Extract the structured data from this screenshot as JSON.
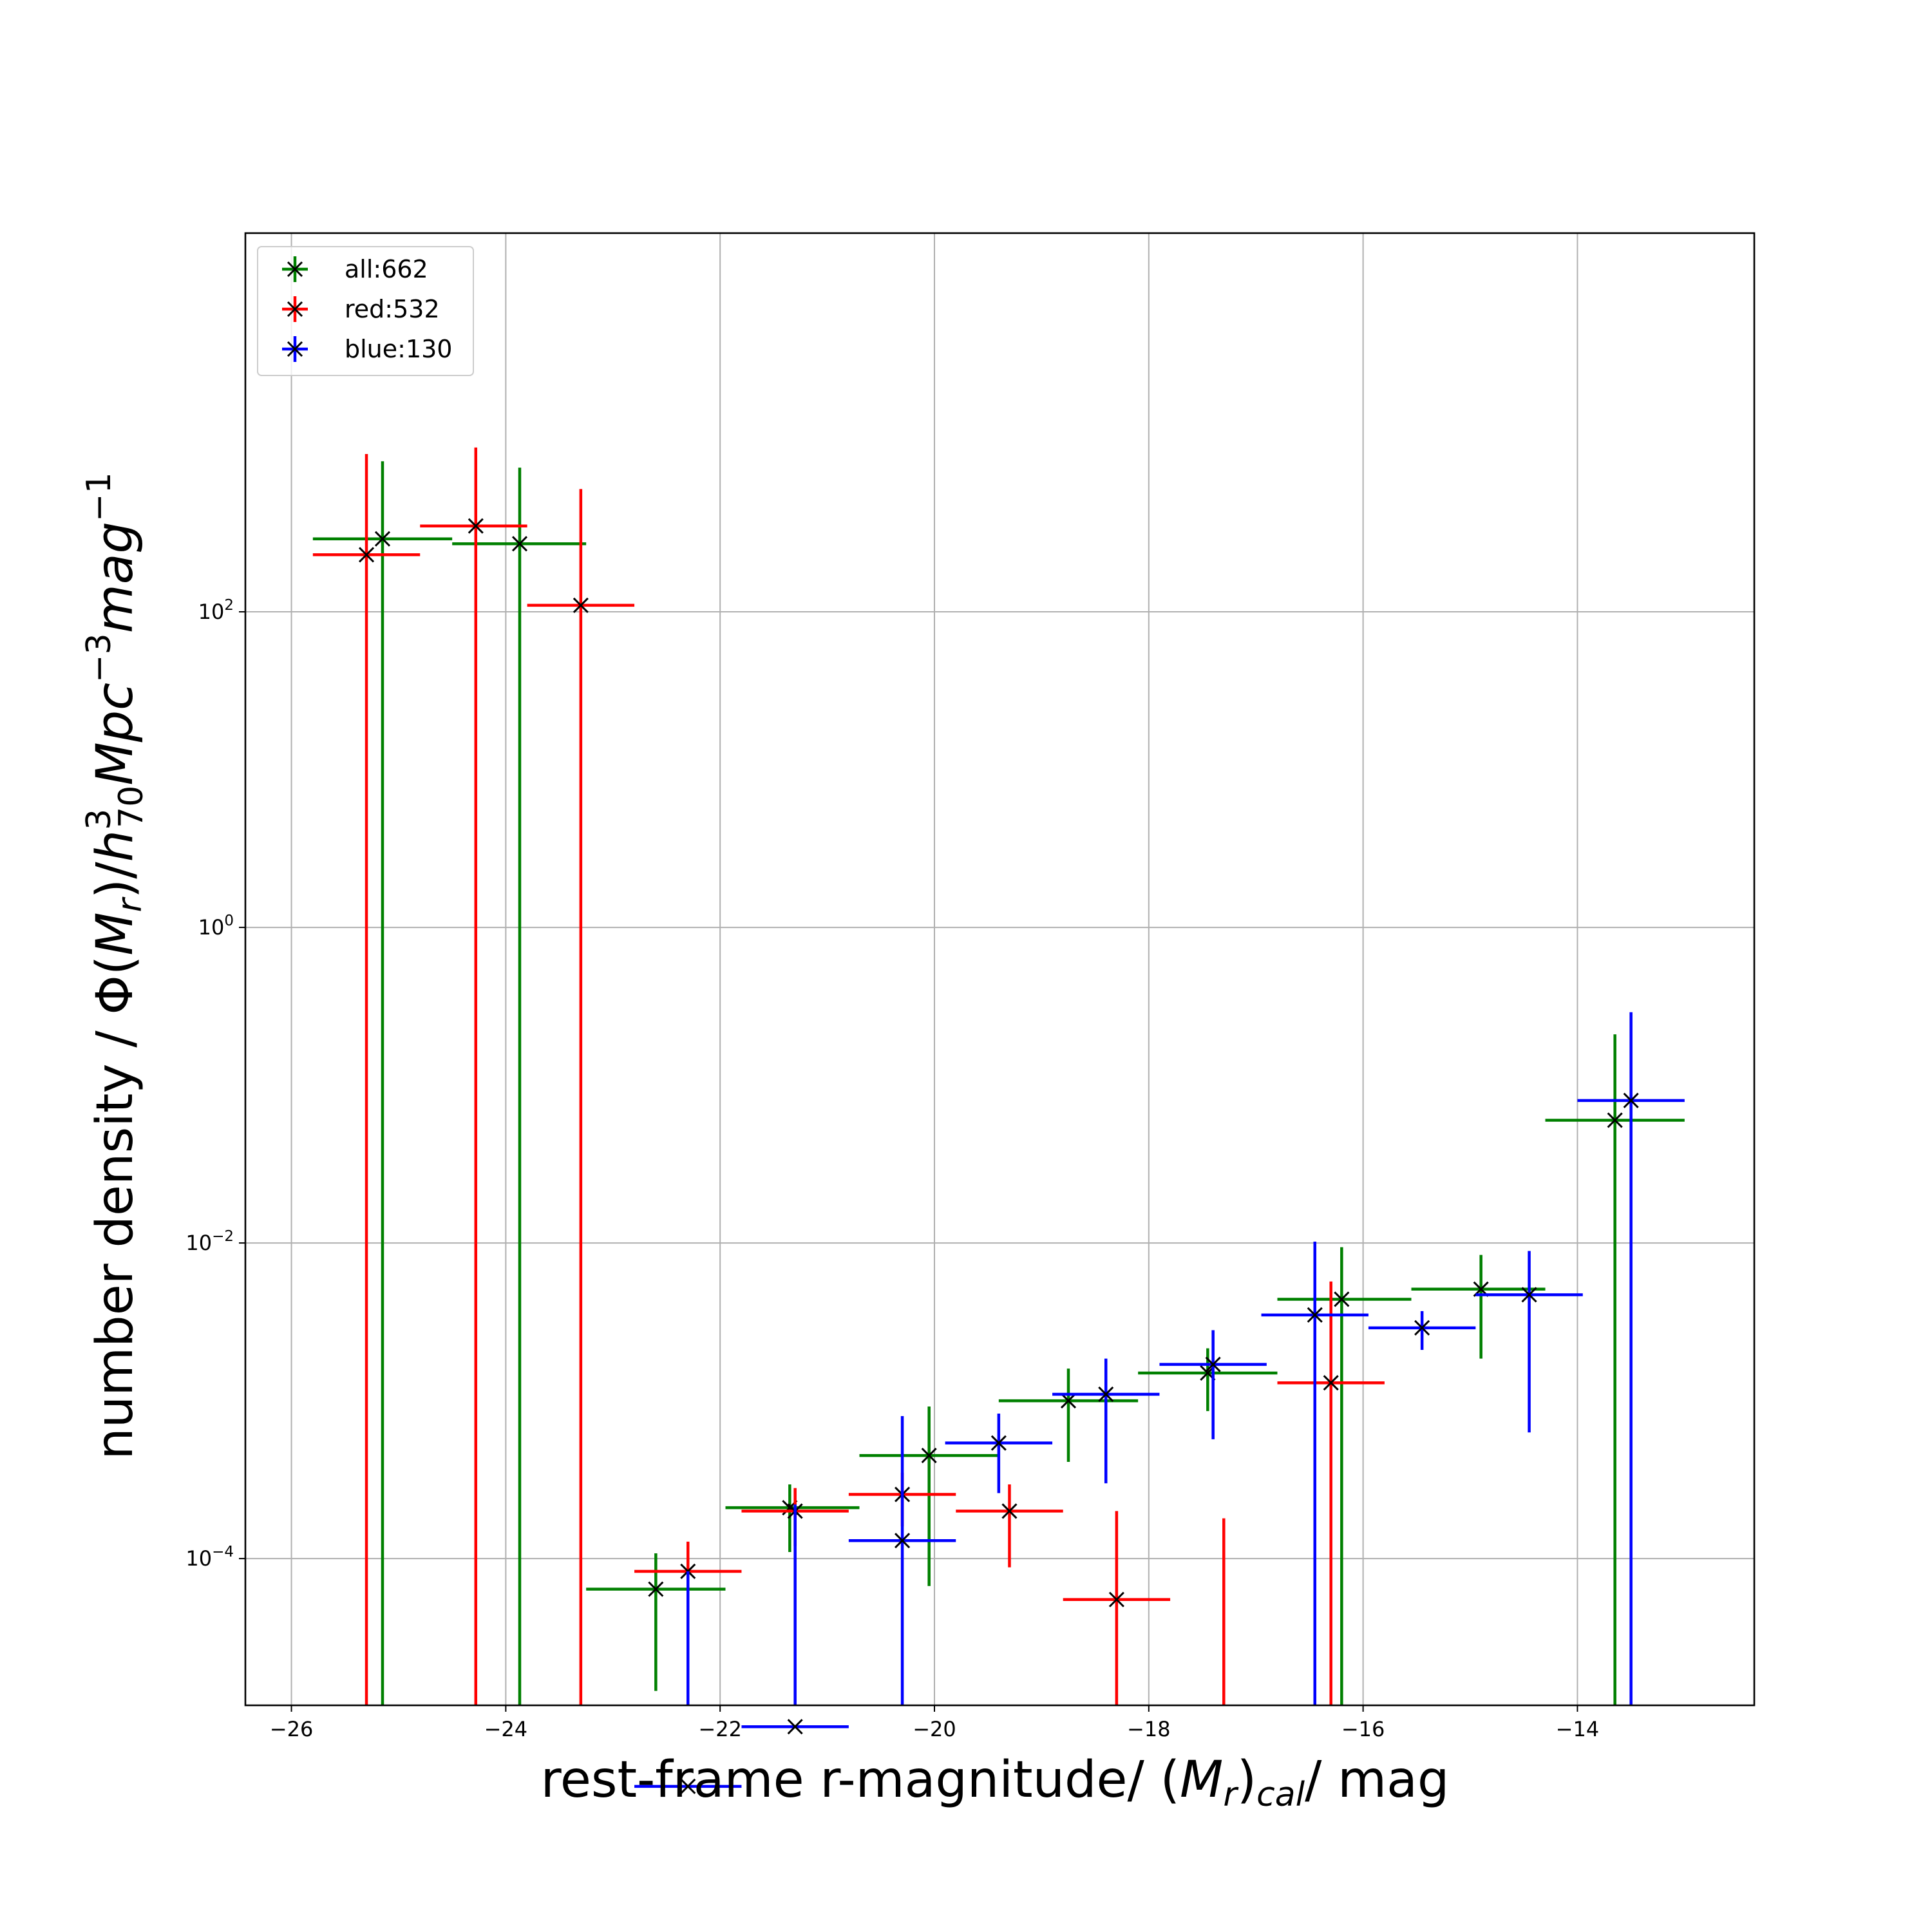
{
  "chart_data": {
    "type": "scatter",
    "xlabel": {
      "pre": "rest-frame r-magnitude/ (",
      "M": "M",
      "r": "r",
      "close": ")",
      "cal": "cal",
      "post": "/ mag"
    },
    "ylabel": {
      "pre": "number density / Φ(",
      "M": "M",
      "r": "r",
      "mid": ")/",
      "h": "h",
      "sup3": "3",
      "sub70": "70",
      "Mpc": "Mpc",
      "supm3": "−3",
      "mag": "mag",
      "supm1": "−1"
    },
    "xlim": [
      -26.43,
      -12.35
    ],
    "ylim_log10": [
      -4.93,
      4.4
    ],
    "y_scale": "log",
    "grid": true,
    "legend_position": "upper-left",
    "x_ticks": [
      {
        "value": -26,
        "label": "−26"
      },
      {
        "value": -24,
        "label": "−24"
      },
      {
        "value": -22,
        "label": "−22"
      },
      {
        "value": -20,
        "label": "−20"
      },
      {
        "value": -18,
        "label": "−18"
      },
      {
        "value": -16,
        "label": "−16"
      },
      {
        "value": -14,
        "label": "−14"
      }
    ],
    "y_ticks": [
      {
        "exp": 2,
        "base": "10",
        "sup": "2"
      },
      {
        "exp": 0,
        "base": "10",
        "sup": "0"
      },
      {
        "exp": -2,
        "base": "10",
        "sup": "−2"
      },
      {
        "exp": -4,
        "base": "10",
        "sup": "−4"
      }
    ],
    "series": [
      {
        "name": "all:662",
        "color": "#008000",
        "points": [
          {
            "x": -25.15,
            "y": 290,
            "xlo": -25.8,
            "xhi": -24.5,
            "ylo": 1e-06,
            "yhi": 900
          },
          {
            "x": -23.87,
            "y": 270,
            "xlo": -24.5,
            "xhi": -23.25,
            "ylo": 1e-06,
            "yhi": 820
          },
          {
            "x": -22.6,
            "y": 6.4e-05,
            "xlo": -23.25,
            "xhi": -21.95,
            "ylo": 1.45e-05,
            "yhi": 0.000108
          },
          {
            "x": -21.35,
            "y": 0.00021,
            "xlo": -21.95,
            "xhi": -20.7,
            "ylo": 0.00011,
            "yhi": 0.000295
          },
          {
            "x": -20.05,
            "y": 0.00045,
            "xlo": -20.7,
            "xhi": -19.4,
            "ylo": 6.7e-05,
            "yhi": 0.00092
          },
          {
            "x": -18.75,
            "y": 0.001,
            "xlo": -19.4,
            "xhi": -18.1,
            "ylo": 0.00041,
            "yhi": 0.0016
          },
          {
            "x": -17.45,
            "y": 0.0015,
            "xlo": -18.1,
            "xhi": -16.8,
            "ylo": 0.00086,
            "yhi": 0.00215
          },
          {
            "x": -16.2,
            "y": 0.0044,
            "xlo": -16.8,
            "xhi": -15.55,
            "ylo": 1e-06,
            "yhi": 0.0094
          },
          {
            "x": -14.9,
            "y": 0.0051,
            "xlo": -15.55,
            "xhi": -14.3,
            "ylo": 0.00185,
            "yhi": 0.0084
          },
          {
            "x": -13.65,
            "y": 0.06,
            "xlo": -14.3,
            "xhi": -13.0,
            "ylo": 1e-06,
            "yhi": 0.21
          }
        ]
      },
      {
        "name": "red:532",
        "color": "#ff0000",
        "points": [
          {
            "x": -25.3,
            "y": 230,
            "xlo": -25.8,
            "xhi": -24.8,
            "ylo": 1e-06,
            "yhi": 1000
          },
          {
            "x": -24.28,
            "y": 350,
            "xlo": -24.8,
            "xhi": -23.8,
            "ylo": 1e-06,
            "yhi": 1100
          },
          {
            "x": -23.3,
            "y": 110,
            "xlo": -23.8,
            "xhi": -22.8,
            "ylo": 1e-06,
            "yhi": 600
          },
          {
            "x": -22.3,
            "y": 8.3e-05,
            "xlo": -22.8,
            "xhi": -21.8,
            "ylo": 3.5e-05,
            "yhi": 0.000128
          },
          {
            "x": -21.3,
            "y": 0.0002,
            "xlo": -21.8,
            "xhi": -20.8,
            "ylo": 0.00012,
            "yhi": 0.00028
          },
          {
            "x": -20.3,
            "y": 0.000255,
            "xlo": -20.8,
            "xhi": -19.8,
            "ylo": 0.00016,
            "yhi": 0.00035
          },
          {
            "x": -19.3,
            "y": 0.0002,
            "xlo": -19.8,
            "xhi": -18.8,
            "ylo": 8.8e-05,
            "yhi": 0.000295
          },
          {
            "x": -18.3,
            "y": 5.5e-05,
            "xlo": -18.8,
            "xhi": -17.8,
            "ylo": 1e-06,
            "yhi": 0.0002
          },
          {
            "x": -17.3,
            "y": null,
            "xlo": null,
            "xhi": null,
            "ylo": 1e-06,
            "yhi": 0.00018
          },
          {
            "x": -16.3,
            "y": 0.0013,
            "xlo": -16.8,
            "xhi": -15.8,
            "ylo": 1e-06,
            "yhi": 0.0057
          }
        ]
      },
      {
        "name": "blue:130",
        "color": "#0000ff",
        "points": [
          {
            "x": -22.3,
            "y": 3.6e-06,
            "xlo": -22.8,
            "xhi": -21.8,
            "ylo": 1e-06,
            "yhi": 8.3e-05
          },
          {
            "x": -21.3,
            "y": 8.6e-06,
            "xlo": -21.8,
            "xhi": -20.8,
            "ylo": 1e-06,
            "yhi": 0.00022
          },
          {
            "x": -20.3,
            "y": 0.00013,
            "xlo": -20.8,
            "xhi": -19.8,
            "ylo": 1e-06,
            "yhi": 0.0008
          },
          {
            "x": -19.4,
            "y": 0.00054,
            "xlo": -19.9,
            "xhi": -18.9,
            "ylo": 0.00026,
            "yhi": 0.00083
          },
          {
            "x": -18.4,
            "y": 0.0011,
            "xlo": -18.9,
            "xhi": -17.9,
            "ylo": 0.0003,
            "yhi": 0.00185
          },
          {
            "x": -17.4,
            "y": 0.0017,
            "xlo": -17.9,
            "xhi": -16.9,
            "ylo": 0.00057,
            "yhi": 0.0028
          },
          {
            "x": -16.45,
            "y": 0.0035,
            "xlo": -16.95,
            "xhi": -15.95,
            "ylo": 1e-06,
            "yhi": 0.0102
          },
          {
            "x": -15.45,
            "y": 0.0029,
            "xlo": -15.95,
            "xhi": -14.95,
            "ylo": 0.0021,
            "yhi": 0.0037
          },
          {
            "x": -14.45,
            "y": 0.0047,
            "xlo": -14.95,
            "xhi": -13.95,
            "ylo": 0.00063,
            "yhi": 0.0089
          },
          {
            "x": -13.5,
            "y": 0.08,
            "xlo": -14.0,
            "xhi": -13.0,
            "ylo": 1e-06,
            "yhi": 0.29
          }
        ]
      }
    ]
  }
}
